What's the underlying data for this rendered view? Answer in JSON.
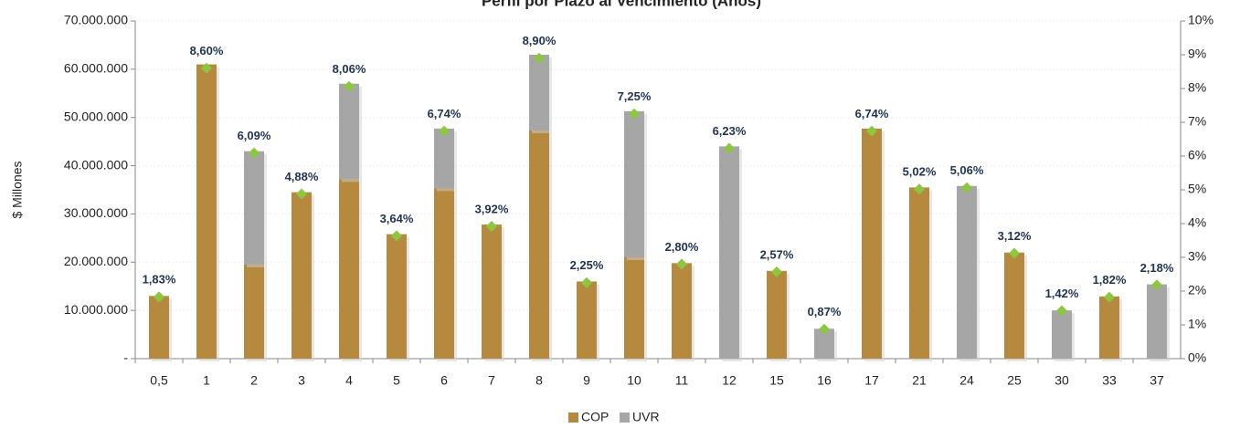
{
  "chart_data": {
    "type": "bar",
    "title": "Perfil por Plazo al Vencimiento (Años)",
    "y_label": "$ Millones",
    "categories": [
      "0,5",
      "1",
      "2",
      "3",
      "4",
      "5",
      "6",
      "7",
      "8",
      "9",
      "10",
      "11",
      "12",
      "15",
      "16",
      "17",
      "21",
      "24",
      "25",
      "30",
      "33",
      "37"
    ],
    "series": [
      {
        "name": "COP",
        "color": "#b58a3e",
        "values": [
          13000000,
          61000000,
          19500000,
          34500000,
          37200000,
          25800000,
          35300000,
          27800000,
          47300000,
          16000000,
          21000000,
          19800000,
          0,
          18200000,
          0,
          47700000,
          35500000,
          0,
          22000000,
          0,
          12900000,
          0
        ]
      },
      {
        "name": "UVR",
        "color": "#a6a6a6",
        "values": [
          0,
          0,
          23500000,
          0,
          19800000,
          0,
          12400000,
          0,
          15700000,
          0,
          30300000,
          0,
          44000000,
          0,
          6200000,
          0,
          0,
          35800000,
          0,
          10000000,
          0,
          15400000
        ]
      },
      {
        "color": "#8dc63f",
        "axis": "y2",
        "values": [
          1.83,
          8.6,
          6.09,
          4.88,
          8.06,
          3.64,
          6.74,
          3.92,
          8.9,
          2.25,
          7.25,
          2.8,
          6.23,
          2.57,
          0.87,
          6.74,
          5.02,
          5.06,
          3.12,
          1.42,
          1.82,
          2.18
        ],
        "value_labels": [
          "1,83%",
          "8,60%",
          "6,09%",
          "4,88%",
          "8,06%",
          "3,64%",
          "6,74%",
          "3,92%",
          "8,90%",
          "2,25%",
          "7,25%",
          "2,80%",
          "6,23%",
          "2,57%",
          "0,87%",
          "6,74%",
          "5,02%",
          "5,06%",
          "3,12%",
          "1,42%",
          "1,82%",
          "2,18%"
        ]
      }
    ],
    "stacked": true,
    "ylim": [
      0,
      70000000
    ],
    "yticks": [
      {
        "value": 0,
        "label": "-"
      },
      {
        "value": 10000000,
        "label": "10.000.000"
      },
      {
        "value": 20000000,
        "label": "20.000.000"
      },
      {
        "value": 30000000,
        "label": "30.000.000"
      },
      {
        "value": 40000000,
        "label": "40.000.000"
      },
      {
        "value": 50000000,
        "label": "50.000.000"
      },
      {
        "value": 60000000,
        "label": "60.000.000"
      },
      {
        "value": 70000000,
        "label": "70.000.000"
      }
    ],
    "y2lim": [
      0,
      10
    ],
    "y2ticks": [
      {
        "value": 0,
        "label": "0%"
      },
      {
        "value": 1,
        "label": "1%"
      },
      {
        "value": 2,
        "label": "2%"
      },
      {
        "value": 3,
        "label": "3%"
      },
      {
        "value": 4,
        "label": "4%"
      },
      {
        "value": 5,
        "label": "5%"
      },
      {
        "value": 6,
        "label": "6%"
      },
      {
        "value": 7,
        "label": "7%"
      },
      {
        "value": 8,
        "label": "8%"
      },
      {
        "value": 9,
        "label": "9%"
      },
      {
        "value": 10,
        "label": "10%"
      }
    ],
    "grid": true,
    "legend": "bottom"
  }
}
